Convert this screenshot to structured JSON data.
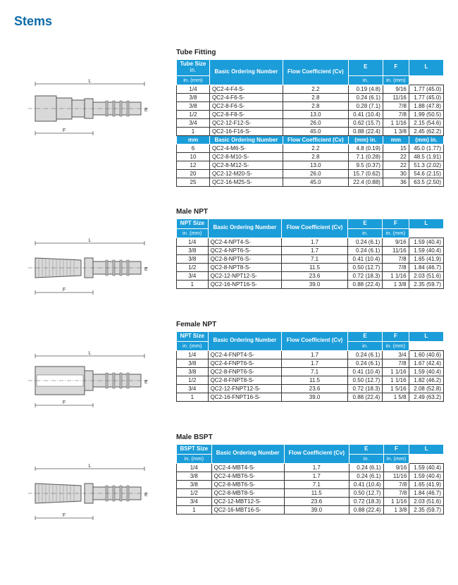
{
  "page_title": "Stems",
  "colors": {
    "brand_blue": "#1b9dd9",
    "title_blue": "#0d6aa8",
    "border": "#333333",
    "diagram_stroke": "#666666",
    "diagram_fill": "#d9d9d9"
  },
  "sections": [
    {
      "title": "Tube Fitting",
      "diagram": "tube-fitting",
      "headers1": [
        "Tube Size",
        "Basic Ordering Number",
        "Flow Coefficient (Cv)",
        "E",
        "F",
        "L"
      ],
      "headers2": [
        "in.",
        "",
        "",
        "in. (mm)",
        "in.",
        "in. (mm)"
      ],
      "rows": [
        [
          "1/4",
          "QC2-4-F4-S-",
          "2.2",
          "0.19 (4.8)",
          "9/16",
          "1.77 (45.0)"
        ],
        [
          "3/8",
          "QC2-4-F6-S-",
          "2.8",
          "0.24 (6.1)",
          "11/16",
          "1.77 (45.0)"
        ],
        [
          "3/8",
          "QC2-8-F6-S-",
          "2.8",
          "0.28 (7.1)",
          "7/8",
          "1.88 (47.8)"
        ],
        [
          "1/2",
          "QC2-8-F8-S-",
          "13.0",
          "0.41 (10.4)",
          "7/8",
          "1.99 (50.5)"
        ],
        [
          "3/4",
          "QC2-12-F12-S-",
          "26.0",
          "0.62 (15.7)",
          "1 1/16",
          "2.15 (54.6)"
        ],
        [
          "1",
          "QC2-16-F16-S-",
          "45.0",
          "0.88 (22.4)",
          "1 3/8",
          "2.45 (62.2)"
        ]
      ],
      "mid_headers1": [
        "mm",
        "Basic Ordering Number",
        "Flow Coefficient (Cv)",
        "(mm) in.",
        "mm",
        "(mm) in."
      ],
      "rows2": [
        [
          "6",
          "QC2-4-M6-S-",
          "2.2",
          "4.8 (0.19)",
          "15",
          "45.0 (1.77)"
        ],
        [
          "10",
          "QC2-8-M10-S-",
          "2.8",
          "7.1 (0.28)",
          "22",
          "48.5 (1.91)"
        ],
        [
          "12",
          "QC2-8-M12-S-",
          "13.0",
          "9.5 (0.37)",
          "22",
          "51.3 (2.02)"
        ],
        [
          "20",
          "QC2-12-M20-S-",
          "26.0",
          "15.7 (0.62)",
          "30",
          "54.6 (2.15)"
        ],
        [
          "25",
          "QC2-16-M25-S-",
          "45.0",
          "22.4 (0.88)",
          "36",
          "63.5 (2.50)"
        ]
      ]
    },
    {
      "title": "Male NPT",
      "diagram": "male-npt",
      "headers1": [
        "NPT Size",
        "Basic Ordering Number",
        "Flow Coefficient (Cv)",
        "E",
        "F",
        "L"
      ],
      "headers2": [
        "",
        "",
        "",
        "in. (mm)",
        "in.",
        "in. (mm)"
      ],
      "rows": [
        [
          "1/4",
          "QC2-4-NPT4-S-",
          "1.7",
          "0.24 (6.1)",
          "9/16",
          "1.59 (40.4)"
        ],
        [
          "3/8",
          "QC2-4-NPT6-S-",
          "1.7",
          "0.24 (6.1)",
          "11/16",
          "1.59 (40.4)"
        ],
        [
          "3/8",
          "QC2-8-NPT6-S-",
          "7.1",
          "0.41 (10.4)",
          "7/8",
          "1.65 (41.9)"
        ],
        [
          "1/2",
          "QC2-8-NPT8-S-",
          "11.5",
          "0.50 (12.7)",
          "7/8",
          "1.84 (46.7)"
        ],
        [
          "3/4",
          "QC2-12-NPT12-S-",
          "23.6",
          "0.72 (18.3)",
          "1 1/16",
          "2.03 (51.6)"
        ],
        [
          "1",
          "QC2-16-NPT16-S-",
          "39.0",
          "0.88 (22.4)",
          "1 3/8",
          "2.35 (59.7)"
        ]
      ]
    },
    {
      "title": "Female NPT",
      "diagram": "female-npt",
      "headers1": [
        "NPT Size",
        "Basic Ordering Number",
        "Flow Coefficient (Cv)",
        "E",
        "F",
        "L"
      ],
      "headers2": [
        "",
        "",
        "",
        "in. (mm)",
        "in.",
        "in. (mm)"
      ],
      "rows": [
        [
          "1/4",
          "QC2-4-FNPT4-S-",
          "1.7",
          "0.24 (6.1)",
          "3/4",
          "1.60 (40.6)"
        ],
        [
          "3/8",
          "QC2-4-FNPT6-S-",
          "1.7",
          "0.24 (6.1)",
          "7/8",
          "1.67 (42.4)"
        ],
        [
          "3/8",
          "QC2-8-FNPT6-S-",
          "7.1",
          "0.41 (10.4)",
          "1 1/16",
          "1.59 (40.4)"
        ],
        [
          "1/2",
          "QC2-8-FNPT8-S-",
          "11.5",
          "0.50 (12.7)",
          "1 1/16",
          "1.82 (46.2)"
        ],
        [
          "3/4",
          "QC2-12-FNPT12-S-",
          "23.6",
          "0.72 (18.3)",
          "1 5/16",
          "2.08 (52.8)"
        ],
        [
          "1",
          "QC2-16-FNPT16-S-",
          "39.0",
          "0.88 (22.4)",
          "1 5/8",
          "2.49 (63.2)"
        ]
      ]
    },
    {
      "title": "Male BSPT",
      "diagram": "male-bspt",
      "headers1": [
        "BSPT Size",
        "Basic Ordering Number",
        "Flow Coefficient (Cv)",
        "E",
        "F",
        "L"
      ],
      "headers2": [
        "",
        "",
        "",
        "in. (mm)",
        "in.",
        "in. (mm)"
      ],
      "rows": [
        [
          "1/4",
          "QC2-4-MBT4-S-",
          "1.7",
          "0.24 (6.1)",
          "9/16",
          "1.59 (40.4)"
        ],
        [
          "3/8",
          "QC2-4-MBT6-S-",
          "1.7",
          "0.24 (6.1)",
          "11/16",
          "1.59 (40.4)"
        ],
        [
          "3/8",
          "QC2-8-MBT6-S-",
          "7.1",
          "0.41 (10.4)",
          "7/8",
          "1.65 (41.9)"
        ],
        [
          "1/2",
          "QC2-8-MBT8-S-",
          "11.5",
          "0.50 (12.7)",
          "7/8",
          "1.84 (46.7)"
        ],
        [
          "3/4",
          "QC2-12-MBT12-S-",
          "23.6",
          "0.72 (18.3)",
          "1 1/16",
          "2.03 (51.6)"
        ],
        [
          "1",
          "QC2-16-MBT16-S-",
          "39.0",
          "0.88 (22.4)",
          "1 3/8",
          "2.35 (59.7)"
        ]
      ]
    }
  ],
  "dim_labels": {
    "L": "L",
    "F": "F",
    "E": "E"
  }
}
